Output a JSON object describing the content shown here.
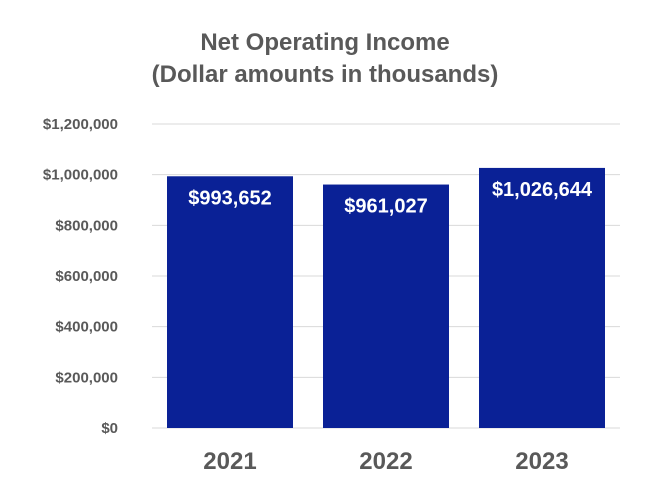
{
  "chart_data": {
    "type": "bar",
    "title": [
      "Net Operating Income",
      "(Dollar amounts in thousands)"
    ],
    "categories": [
      "2021",
      "2022",
      "2023"
    ],
    "values": [
      993652,
      961027,
      1026644
    ],
    "data_labels": [
      "$993,652",
      "$961,027",
      "$1,026,644"
    ],
    "xlabel": "",
    "ylabel": "",
    "ylim": [
      0,
      1200000
    ],
    "yticks": [
      0,
      200000,
      400000,
      600000,
      800000,
      1000000,
      1200000
    ],
    "ytick_labels": [
      "$0",
      "$200,000",
      "$400,000",
      "$600,000",
      "$800,000",
      "$1,000,000",
      "$1,200,000"
    ],
    "grid": true,
    "legend": "none",
    "bar_color": "#0a2196"
  }
}
